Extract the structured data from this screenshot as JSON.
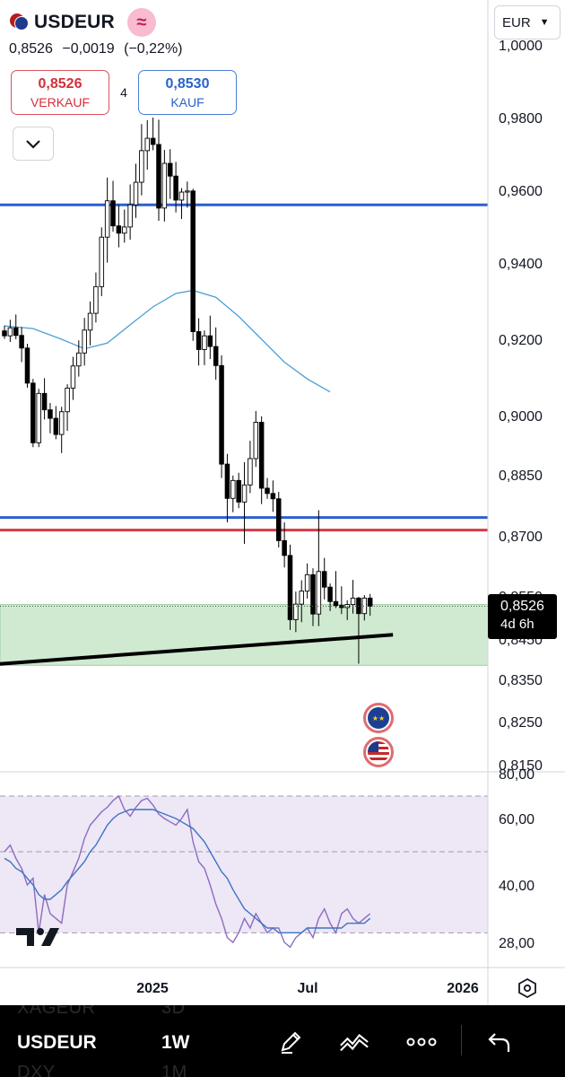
{
  "header": {
    "symbol": "USDEUR",
    "price": "0,8526",
    "change": "−0,0019",
    "change_pct": "(−0,22%)"
  },
  "trade": {
    "sell_price": "0,8526",
    "sell_label": "VERKAUF",
    "spread": "4",
    "buy_price": "0,8530",
    "buy_label": "KAUF"
  },
  "currency_selector": "EUR",
  "last_price_label": {
    "value": "0,8526",
    "countdown": "4d 6h"
  },
  "toolbar": {
    "symbol": "USDEUR",
    "interval": "1W",
    "ghost_above": [
      "XAGEUR",
      "3D"
    ],
    "ghost_below": [
      "DXY",
      "1M"
    ]
  },
  "icons": [
    "usdeur-flag-icon",
    "wave-badge-icon",
    "chevron-down-icon",
    "eu-flag-icon",
    "us-flag-icon",
    "tradingview-logo-icon",
    "settings-hexagon-icon",
    "pencil-icon",
    "indicators-icon",
    "more-icon",
    "undo-icon"
  ],
  "colors": {
    "sell": "#d32f3a",
    "buy": "#2962c9",
    "horizontal_blue": "#2d5fd0",
    "horizontal_red": "#d23c46",
    "support_zone": "#c8e6c9",
    "ma_line": "#4a9fd4",
    "rsi_line": "#8e6bbf",
    "rsi_ma": "#3d74c4",
    "rsi_band": "#ede7f6"
  },
  "chart_data": {
    "type": "candlestick",
    "timeframe": "1W",
    "price_axis": {
      "ticks": [
        "1,0000",
        "0,9800",
        "0,9600",
        "0,9400",
        "0,9200",
        "0,9000",
        "0,8850",
        "0,8700",
        "0,8550",
        "0,8450",
        "0,8350",
        "0,8250",
        "0,8150"
      ]
    },
    "time_axis": {
      "ticks": [
        "2025",
        "Jul",
        "2026"
      ]
    },
    "candles": [
      [
        0.9222,
        0.9236,
        0.9201,
        0.9209
      ],
      [
        0.9209,
        0.9251,
        0.9193,
        0.923
      ],
      [
        0.923,
        0.9265,
        0.92,
        0.921
      ],
      [
        0.921,
        0.9232,
        0.914,
        0.9177
      ],
      [
        0.9177,
        0.9188,
        0.9073,
        0.9085
      ],
      [
        0.9085,
        0.9096,
        0.892,
        0.8931
      ],
      [
        0.8931,
        0.907,
        0.892,
        0.9058
      ],
      [
        0.9058,
        0.9098,
        0.899,
        0.9015
      ],
      [
        0.9015,
        0.9033,
        0.8955,
        0.8993
      ],
      [
        0.8993,
        0.9025,
        0.894,
        0.8952
      ],
      [
        0.8952,
        0.9023,
        0.8905,
        0.901
      ],
      [
        0.901,
        0.9082,
        0.8961,
        0.9072
      ],
      [
        0.9072,
        0.9154,
        0.9041,
        0.913
      ],
      [
        0.913,
        0.9197,
        0.9102,
        0.9164
      ],
      [
        0.9164,
        0.9256,
        0.9131,
        0.9224
      ],
      [
        0.9224,
        0.9299,
        0.9184,
        0.9268
      ],
      [
        0.9268,
        0.9375,
        0.9244,
        0.9338
      ],
      [
        0.9338,
        0.9498,
        0.9313,
        0.9471
      ],
      [
        0.9471,
        0.9635,
        0.9401,
        0.9571
      ],
      [
        0.9571,
        0.9626,
        0.9486,
        0.9502
      ],
      [
        0.9502,
        0.956,
        0.9443,
        0.9482
      ],
      [
        0.9482,
        0.9547,
        0.9456,
        0.9499
      ],
      [
        0.9499,
        0.9616,
        0.9464,
        0.956
      ],
      [
        0.956,
        0.9673,
        0.9524,
        0.9622
      ],
      [
        0.9622,
        0.9782,
        0.9586,
        0.9709
      ],
      [
        0.9709,
        0.9793,
        0.9657,
        0.9743
      ],
      [
        0.9743,
        0.98,
        0.971,
        0.9726
      ],
      [
        0.9726,
        0.9794,
        0.9516,
        0.9551
      ],
      [
        0.9551,
        0.9711,
        0.9514,
        0.9674
      ],
      [
        0.9674,
        0.9713,
        0.9576,
        0.9639
      ],
      [
        0.9639,
        0.9678,
        0.9539,
        0.9573
      ],
      [
        0.9573,
        0.9606,
        0.9521,
        0.9595
      ],
      [
        0.9595,
        0.9624,
        0.9552,
        0.9598
      ],
      [
        0.9598,
        0.9604,
        0.9196,
        0.922
      ],
      [
        0.922,
        0.9255,
        0.9131,
        0.9173
      ],
      [
        0.9173,
        0.9223,
        0.9132,
        0.9209
      ],
      [
        0.9209,
        0.9262,
        0.9148,
        0.9181
      ],
      [
        0.9181,
        0.9231,
        0.9094,
        0.9131
      ],
      [
        0.9131,
        0.9158,
        0.8842,
        0.8877
      ],
      [
        0.8877,
        0.8903,
        0.8733,
        0.8792
      ],
      [
        0.8792,
        0.8848,
        0.8758,
        0.8836
      ],
      [
        0.8836,
        0.8855,
        0.8768,
        0.8783
      ],
      [
        0.8783,
        0.8882,
        0.868,
        0.8825
      ],
      [
        0.8825,
        0.8936,
        0.8805,
        0.8891
      ],
      [
        0.8891,
        0.9012,
        0.887,
        0.8983
      ],
      [
        0.8983,
        0.8998,
        0.8778,
        0.8817
      ],
      [
        0.8817,
        0.8842,
        0.8791,
        0.8804
      ],
      [
        0.8804,
        0.8836,
        0.8759,
        0.8791
      ],
      [
        0.8791,
        0.8808,
        0.8671,
        0.8688
      ],
      [
        0.8688,
        0.8733,
        0.8621,
        0.8651
      ],
      [
        0.8651,
        0.8678,
        0.8471,
        0.8495
      ],
      [
        0.8495,
        0.8561,
        0.8466,
        0.8531
      ],
      [
        0.8531,
        0.8589,
        0.8489,
        0.8562
      ],
      [
        0.8562,
        0.8631,
        0.8544,
        0.8603
      ],
      [
        0.8603,
        0.8619,
        0.848,
        0.8508
      ],
      [
        0.8508,
        0.8763,
        0.848,
        0.8611
      ],
      [
        0.8611,
        0.8645,
        0.8542,
        0.8572
      ],
      [
        0.8572,
        0.8581,
        0.8515,
        0.8537
      ],
      [
        0.8537,
        0.8612,
        0.8522,
        0.8528
      ],
      [
        0.8528,
        0.8574,
        0.8508,
        0.8523
      ],
      [
        0.8523,
        0.854,
        0.8494,
        0.853
      ],
      [
        0.853,
        0.859,
        0.8509,
        0.8545
      ],
      [
        0.8545,
        0.8548,
        0.8389,
        0.8509
      ],
      [
        0.8509,
        0.8552,
        0.8493,
        0.8545
      ],
      [
        0.8545,
        0.8555,
        0.8504,
        0.8526
      ]
    ],
    "moving_average": [
      [
        0,
        0.9235
      ],
      [
        5,
        0.9228
      ],
      [
        10,
        0.92
      ],
      [
        14,
        0.9175
      ],
      [
        18,
        0.919
      ],
      [
        22,
        0.9238
      ],
      [
        26,
        0.9285
      ],
      [
        30,
        0.932
      ],
      [
        33,
        0.9328
      ],
      [
        37,
        0.931
      ],
      [
        41,
        0.926
      ],
      [
        45,
        0.92
      ],
      [
        49,
        0.914
      ],
      [
        53,
        0.9096
      ],
      [
        57,
        0.9062
      ]
    ],
    "horizontal_levels": [
      {
        "price": 0.956,
        "color": "blue"
      },
      {
        "price": 0.8745,
        "color": "blue"
      },
      {
        "price": 0.8714,
        "color": "red"
      }
    ],
    "support_zone": {
      "from": 0.8385,
      "to": 0.853
    },
    "trendline": {
      "from": [
        -4,
        0.8385
      ],
      "to": [
        68,
        0.846
      ]
    },
    "rsi": {
      "ticks": [
        "80,00",
        "60,00",
        "40,00",
        "28,00"
      ],
      "band": [
        30,
        70
      ],
      "values": [
        50,
        52,
        48,
        45,
        40,
        42,
        30,
        38,
        34,
        33,
        32,
        40,
        44,
        48,
        54,
        58,
        60,
        63,
        65,
        68,
        70,
        64,
        61,
        65,
        68,
        69,
        66,
        62,
        60,
        59,
        58,
        60,
        64,
        53,
        47,
        45,
        40,
        36,
        33,
        29,
        28,
        30,
        33,
        31,
        34,
        32,
        30,
        31,
        31,
        28,
        27,
        29,
        30,
        31,
        29,
        33,
        35,
        32,
        30,
        34,
        35,
        33,
        32,
        33,
        34
      ],
      "ma": [
        48,
        47,
        45,
        44,
        42,
        40,
        38,
        37,
        37,
        38,
        39,
        41,
        43,
        45,
        47,
        50,
        52,
        55,
        58,
        60,
        62,
        63,
        64,
        64,
        64,
        64,
        64,
        63,
        62,
        61,
        60,
        59,
        58,
        57,
        55,
        53,
        50,
        47,
        44,
        42,
        39,
        37,
        35,
        34,
        33,
        32,
        31,
        31,
        30,
        30,
        30,
        30,
        30,
        31,
        31,
        31,
        31,
        31,
        31,
        31,
        32,
        32,
        32,
        32,
        33
      ]
    }
  }
}
